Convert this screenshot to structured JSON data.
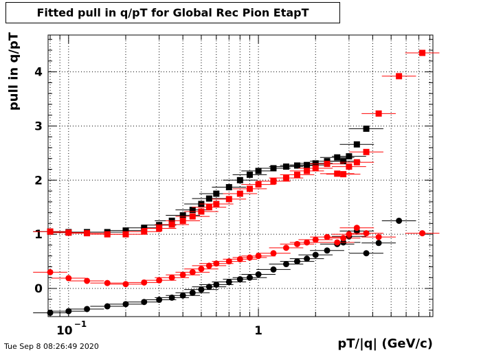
{
  "chart_data": {
    "type": "scatter",
    "title": "Fitted pull in q/pT for Global Rec Pion EtapT",
    "xlabel": "pT/|q| (GeV/c)",
    "ylabel": "pull in q/pT",
    "x_scale": "log",
    "xlim": [
      0.078,
      8.3
    ],
    "ylim": [
      -0.52,
      4.68
    ],
    "grid": true,
    "x_major_ticks": [
      {
        "value": 0.1,
        "label": "10",
        "exponent": "−1"
      },
      {
        "value": 1,
        "label": "1",
        "exponent": ""
      }
    ],
    "y_ticks": [
      0,
      1,
      2,
      3,
      4
    ],
    "timestamp": "Tue Sep  8 08:26:49 2020",
    "series": [
      {
        "color": "#000000",
        "marker": "square",
        "points": [
          {
            "x": 0.08,
            "y": 1.05
          },
          {
            "x": 0.1,
            "y": 1.04
          },
          {
            "x": 0.125,
            "y": 1.04
          },
          {
            "x": 0.16,
            "y": 1.04
          },
          {
            "x": 0.2,
            "y": 1.07
          },
          {
            "x": 0.25,
            "y": 1.12
          },
          {
            "x": 0.3,
            "y": 1.17
          },
          {
            "x": 0.35,
            "y": 1.25
          },
          {
            "x": 0.4,
            "y": 1.35
          },
          {
            "x": 0.45,
            "y": 1.45
          },
          {
            "x": 0.5,
            "y": 1.56
          },
          {
            "x": 0.55,
            "y": 1.66
          },
          {
            "x": 0.6,
            "y": 1.75
          },
          {
            "x": 0.7,
            "y": 1.87
          },
          {
            "x": 0.8,
            "y": 2.0
          },
          {
            "x": 0.9,
            "y": 2.1
          },
          {
            "x": 1.0,
            "y": 2.17
          },
          {
            "x": 1.2,
            "y": 2.22
          },
          {
            "x": 1.4,
            "y": 2.25
          },
          {
            "x": 1.6,
            "y": 2.27
          },
          {
            "x": 1.8,
            "y": 2.28
          },
          {
            "x": 2.0,
            "y": 2.31
          },
          {
            "x": 2.3,
            "y": 2.35
          },
          {
            "x": 2.6,
            "y": 2.42
          },
          {
            "x": 2.8,
            "y": 2.35
          },
          {
            "x": 3.0,
            "y": 2.44
          },
          {
            "x": 3.3,
            "y": 2.66
          },
          {
            "x": 3.7,
            "y": 2.95
          }
        ]
      },
      {
        "color": "#ff0000",
        "marker": "square",
        "points": [
          {
            "x": 0.08,
            "y": 1.05
          },
          {
            "x": 0.1,
            "y": 1.03
          },
          {
            "x": 0.125,
            "y": 1.02
          },
          {
            "x": 0.16,
            "y": 1.0
          },
          {
            "x": 0.2,
            "y": 1.0
          },
          {
            "x": 0.25,
            "y": 1.05
          },
          {
            "x": 0.3,
            "y": 1.11
          },
          {
            "x": 0.35,
            "y": 1.18
          },
          {
            "x": 0.4,
            "y": 1.25
          },
          {
            "x": 0.45,
            "y": 1.33
          },
          {
            "x": 0.5,
            "y": 1.42
          },
          {
            "x": 0.55,
            "y": 1.5
          },
          {
            "x": 0.6,
            "y": 1.56
          },
          {
            "x": 0.7,
            "y": 1.65
          },
          {
            "x": 0.8,
            "y": 1.75
          },
          {
            "x": 0.9,
            "y": 1.84
          },
          {
            "x": 1.0,
            "y": 1.92
          },
          {
            "x": 1.2,
            "y": 1.98
          },
          {
            "x": 1.4,
            "y": 2.04
          },
          {
            "x": 1.6,
            "y": 2.1
          },
          {
            "x": 1.8,
            "y": 2.17
          },
          {
            "x": 2.0,
            "y": 2.22
          },
          {
            "x": 2.3,
            "y": 2.3
          },
          {
            "x": 2.6,
            "y": 2.12
          },
          {
            "x": 2.8,
            "y": 2.11
          },
          {
            "x": 3.0,
            "y": 2.25
          },
          {
            "x": 3.3,
            "y": 2.33
          },
          {
            "x": 3.7,
            "y": 2.52
          },
          {
            "x": 4.3,
            "y": 3.23
          },
          {
            "x": 5.5,
            "y": 3.92
          },
          {
            "x": 7.3,
            "y": 4.35
          }
        ]
      },
      {
        "color": "#000000",
        "marker": "circle",
        "points": [
          {
            "x": 0.08,
            "y": -0.45
          },
          {
            "x": 0.1,
            "y": -0.42
          },
          {
            "x": 0.125,
            "y": -0.38
          },
          {
            "x": 0.16,
            "y": -0.33
          },
          {
            "x": 0.2,
            "y": -0.29
          },
          {
            "x": 0.25,
            "y": -0.25
          },
          {
            "x": 0.3,
            "y": -0.21
          },
          {
            "x": 0.35,
            "y": -0.17
          },
          {
            "x": 0.4,
            "y": -0.13
          },
          {
            "x": 0.45,
            "y": -0.08
          },
          {
            "x": 0.5,
            "y": -0.02
          },
          {
            "x": 0.55,
            "y": 0.03
          },
          {
            "x": 0.6,
            "y": 0.07
          },
          {
            "x": 0.7,
            "y": 0.12
          },
          {
            "x": 0.8,
            "y": 0.17
          },
          {
            "x": 0.9,
            "y": 0.2
          },
          {
            "x": 1.0,
            "y": 0.26
          },
          {
            "x": 1.2,
            "y": 0.35
          },
          {
            "x": 1.4,
            "y": 0.45
          },
          {
            "x": 1.6,
            "y": 0.5
          },
          {
            "x": 1.8,
            "y": 0.55
          },
          {
            "x": 2.0,
            "y": 0.62
          },
          {
            "x": 2.3,
            "y": 0.7
          },
          {
            "x": 2.6,
            "y": 0.82
          },
          {
            "x": 2.8,
            "y": 0.85
          },
          {
            "x": 3.0,
            "y": 0.96
          },
          {
            "x": 3.3,
            "y": 1.06
          },
          {
            "x": 3.7,
            "y": 0.65
          },
          {
            "x": 4.3,
            "y": 0.84
          },
          {
            "x": 5.5,
            "y": 1.25
          }
        ]
      },
      {
        "color": "#ff0000",
        "marker": "circle",
        "points": [
          {
            "x": 0.08,
            "y": 0.3
          },
          {
            "x": 0.1,
            "y": 0.19
          },
          {
            "x": 0.125,
            "y": 0.14
          },
          {
            "x": 0.16,
            "y": 0.1
          },
          {
            "x": 0.2,
            "y": 0.08
          },
          {
            "x": 0.25,
            "y": 0.11
          },
          {
            "x": 0.3,
            "y": 0.15
          },
          {
            "x": 0.35,
            "y": 0.2
          },
          {
            "x": 0.4,
            "y": 0.25
          },
          {
            "x": 0.45,
            "y": 0.3
          },
          {
            "x": 0.5,
            "y": 0.36
          },
          {
            "x": 0.55,
            "y": 0.42
          },
          {
            "x": 0.6,
            "y": 0.46
          },
          {
            "x": 0.7,
            "y": 0.5
          },
          {
            "x": 0.8,
            "y": 0.54
          },
          {
            "x": 0.9,
            "y": 0.57
          },
          {
            "x": 1.0,
            "y": 0.6
          },
          {
            "x": 1.2,
            "y": 0.65
          },
          {
            "x": 1.4,
            "y": 0.75
          },
          {
            "x": 1.6,
            "y": 0.82
          },
          {
            "x": 1.8,
            "y": 0.85
          },
          {
            "x": 2.0,
            "y": 0.9
          },
          {
            "x": 2.3,
            "y": 0.95
          },
          {
            "x": 2.6,
            "y": 0.85
          },
          {
            "x": 2.8,
            "y": 0.93
          },
          {
            "x": 3.0,
            "y": 1.0
          },
          {
            "x": 3.3,
            "y": 1.12
          },
          {
            "x": 3.7,
            "y": 1.02
          },
          {
            "x": 4.3,
            "y": 0.95
          },
          {
            "x": 7.3,
            "y": 1.02
          }
        ]
      }
    ]
  }
}
